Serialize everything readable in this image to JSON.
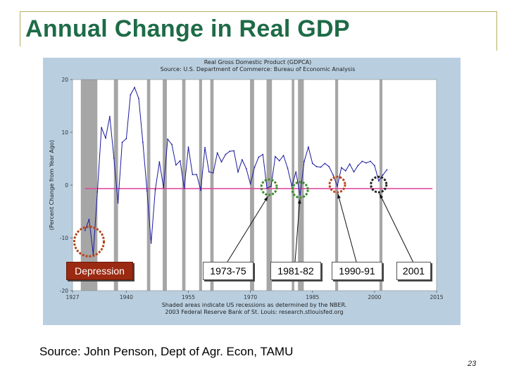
{
  "slide": {
    "title": "Annual Change in Real GDP",
    "source": "Source: John Penson, Dept of Agr. Econ, TAMU",
    "page_number": "23"
  },
  "colors": {
    "title": "#1e6b47",
    "series": "#1a1a9e",
    "zero_line": "#e0409a",
    "recession_band": "#a6a6a6",
    "plot_bg": "#ffffff",
    "panel_bg": "#b9cfe0"
  },
  "callouts": [
    {
      "label": "Depression",
      "circle_color": "#b5461c",
      "circle_year": 1931,
      "circle_value": -11.5
    },
    {
      "label": "1973-75",
      "circle_color": "#3d8a2a",
      "circle_year": 1974.5,
      "circle_value": 0
    },
    {
      "label": "1981-82",
      "circle_color": "#3d8a2a",
      "circle_year": 1982,
      "circle_value": -0.5
    },
    {
      "label": "1990-91",
      "circle_color": "#b5461c",
      "circle_year": 1991,
      "circle_value": 0.5
    },
    {
      "label": "2001",
      "circle_color": "#222222",
      "circle_year": 2001,
      "circle_value": 0.5
    }
  ],
  "chart_data": {
    "type": "line",
    "title": "Real Gross Domestic Product (GDPCA)",
    "subtitle": "Source: U.S. Department of Commerce: Bureau of Economic Analysis",
    "ylabel": "(Percent Change from Year Ago)",
    "xlabel": "",
    "xlim": [
      1927,
      2015
    ],
    "ylim": [
      -20,
      20
    ],
    "x_ticks": [
      "1927",
      "1940",
      "1955",
      "1970",
      "1985",
      "2000",
      "2015"
    ],
    "y_ticks": [
      "20",
      "10",
      "0",
      "-10",
      "-20"
    ],
    "notes": [
      "Shaded areas indicate US recessions as determined by the NBER.",
      "2003 Federal Reserve Bank of St. Louis: research.stlouisfed.org"
    ],
    "recessions": [
      [
        1929,
        1933
      ],
      [
        1937,
        1938
      ],
      [
        1945,
        1945.8
      ],
      [
        1948.8,
        1949.8
      ],
      [
        1953.5,
        1954.3
      ],
      [
        1957.6,
        1958.3
      ],
      [
        1960.3,
        1961.1
      ],
      [
        1969.9,
        1970.9
      ],
      [
        1973.9,
        1975.2
      ],
      [
        1980,
        1980.6
      ],
      [
        1981.5,
        1982.9
      ],
      [
        1990.5,
        1991.2
      ],
      [
        2001.2,
        2001.9
      ]
    ],
    "series": [
      {
        "name": "Real GDP, percent change from year ago",
        "x": [
          1930,
          1931,
          1932,
          1933,
          1934,
          1935,
          1936,
          1937,
          1938,
          1939,
          1940,
          1941,
          1942,
          1943,
          1944,
          1945,
          1946,
          1947,
          1948,
          1949,
          1950,
          1951,
          1952,
          1953,
          1954,
          1955,
          1956,
          1957,
          1958,
          1959,
          1960,
          1961,
          1962,
          1963,
          1964,
          1965,
          1966,
          1967,
          1968,
          1969,
          1970,
          1971,
          1972,
          1973,
          1974,
          1975,
          1976,
          1977,
          1978,
          1979,
          1980,
          1981,
          1982,
          1983,
          1984,
          1985,
          1986,
          1987,
          1988,
          1989,
          1990,
          1991,
          1992,
          1993,
          1994,
          1995,
          1996,
          1997,
          1998,
          1999,
          2000,
          2001,
          2002,
          2003
        ],
        "values": [
          -8.6,
          -6.5,
          -13.1,
          -1.3,
          10.9,
          8.9,
          13.0,
          5.1,
          -3.4,
          8.1,
          8.8,
          17.1,
          18.5,
          16.4,
          8.1,
          -1.1,
          -11.0,
          -0.9,
          4.4,
          -0.5,
          8.7,
          7.7,
          3.8,
          4.6,
          -0.6,
          7.2,
          2.0,
          2.0,
          -1.0,
          7.1,
          2.5,
          2.3,
          6.1,
          4.4,
          5.8,
          6.4,
          6.5,
          2.5,
          4.8,
          3.1,
          0.2,
          3.4,
          5.3,
          5.8,
          -0.6,
          -0.2,
          5.4,
          4.6,
          5.6,
          3.2,
          -0.2,
          2.5,
          -1.9,
          4.5,
          7.2,
          4.1,
          3.5,
          3.4,
          4.1,
          3.5,
          1.9,
          -0.2,
          3.3,
          2.7,
          4.0,
          2.5,
          3.7,
          4.5,
          4.2,
          4.5,
          3.7,
          0.8,
          1.9,
          2.9
        ]
      }
    ]
  }
}
